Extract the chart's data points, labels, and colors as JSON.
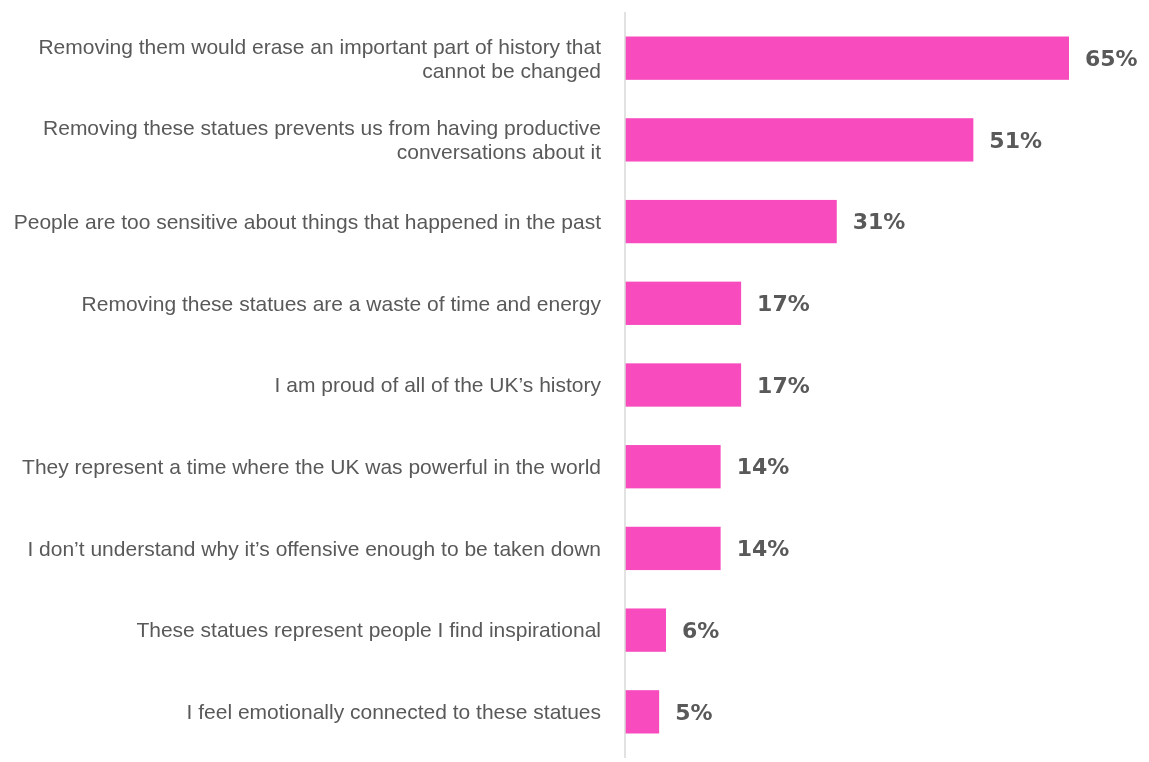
{
  "chart_data": {
    "type": "bar",
    "orientation": "horizontal",
    "categories": [
      "Removing them would erase an important part of history that cannot be changed",
      "Removing these statues prevents us from having productive conversations about it",
      "People are too sensitive about things that happened in the past",
      "Removing these statues are a waste of time and energy",
      "I am proud of all of the UK’s history",
      "They represent a time where the UK was powerful in the world",
      "I don’t understand why it’s offensive enough to be taken down",
      "These statues represent people I find inspirational",
      "I feel emotionally connected to these statues"
    ],
    "values": [
      65,
      51,
      31,
      17,
      17,
      14,
      14,
      6,
      5
    ],
    "value_labels": [
      "65%",
      "51%",
      "31%",
      "17%",
      "17%",
      "14%",
      "14%",
      "6%",
      "5%"
    ],
    "color": "#f74bbe"
  }
}
